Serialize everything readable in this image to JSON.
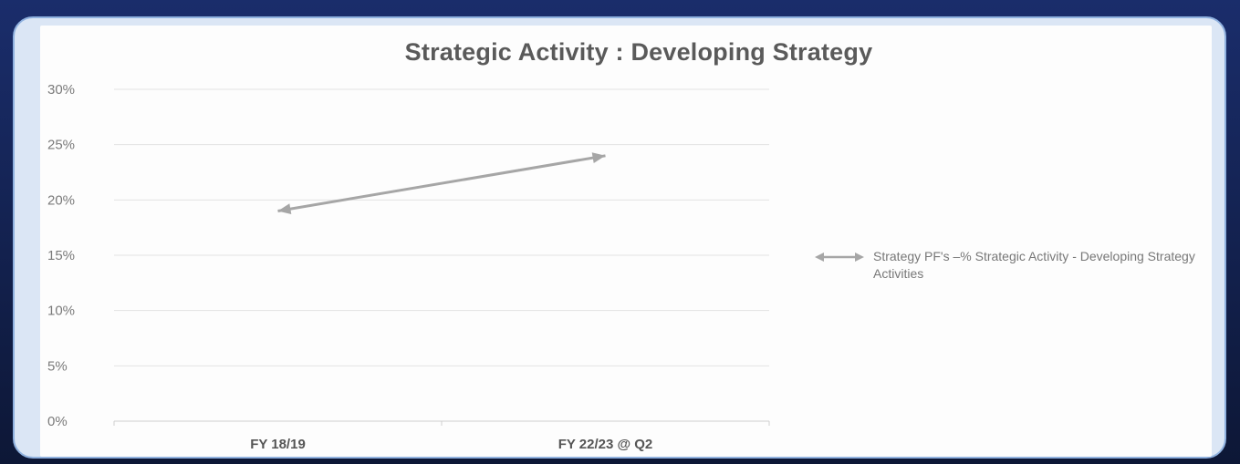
{
  "chart_data": {
    "type": "line",
    "title": "Strategic Activity : Developing Strategy",
    "xlabel": "",
    "ylabel": "",
    "categories": [
      "FY 18/19",
      "FY 22/23 @ Q2"
    ],
    "series": [
      {
        "name": "Strategy PF's –% Strategic Activity - Developing Strategy Activities",
        "values": [
          0.19,
          0.24
        ],
        "color": "#a6a6a6"
      }
    ],
    "ylim": [
      0,
      0.3
    ],
    "yticks": [
      "0%",
      "5%",
      "10%",
      "15%",
      "20%",
      "25%",
      "30%"
    ],
    "grid": true,
    "legend": "right"
  }
}
